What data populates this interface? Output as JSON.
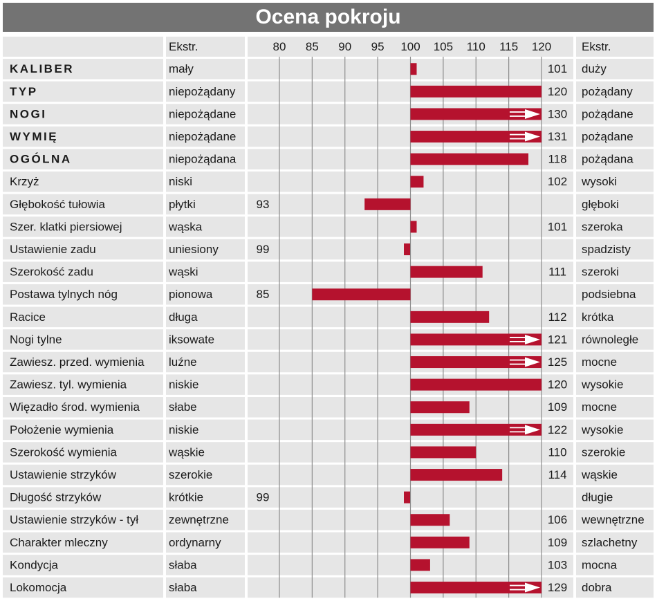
{
  "title": "Ocena pokroju",
  "header": {
    "left_extreme": "Ekstr.",
    "right_extreme": "Ekstr."
  },
  "colors": {
    "title_bg": "#737373",
    "row_bg": "#e6e6e6",
    "bar": "#b5122e",
    "gridline": "#8c8c8c"
  },
  "chart_data": {
    "type": "bar",
    "orientation": "horizontal",
    "title": "Ocena pokroju",
    "xlim": [
      80,
      120
    ],
    "ticks": [
      80,
      85,
      90,
      95,
      100,
      105,
      110,
      115,
      120
    ],
    "baseline": 100,
    "grid": true,
    "rows": [
      {
        "trait": "KALIBER",
        "bold": true,
        "low": "mały",
        "high": "duży",
        "value": 101
      },
      {
        "trait": "TYP",
        "bold": true,
        "low": "niepożądany",
        "high": "pożądany",
        "value": 120
      },
      {
        "trait": "NOGI",
        "bold": true,
        "low": "niepożądane",
        "high": "pożądane",
        "value": 130,
        "clipped": true
      },
      {
        "trait": "WYMIĘ",
        "bold": true,
        "low": "niepożądane",
        "high": "pożądane",
        "value": 131,
        "clipped": true
      },
      {
        "trait": "OGÓLNA",
        "bold": true,
        "low": "niepożądana",
        "high": "pożądana",
        "value": 118
      },
      {
        "trait": "Krzyż",
        "low": "niski",
        "high": "wysoki",
        "value": 102
      },
      {
        "trait": "Głębokość tułowia",
        "low": "płytki",
        "high": "głęboki",
        "value": 93
      },
      {
        "trait": "Szer. klatki piersiowej",
        "low": "wąska",
        "high": "szeroka",
        "value": 101
      },
      {
        "trait": "Ustawienie zadu",
        "low": "uniesiony",
        "high": "spadzisty",
        "value": 99
      },
      {
        "trait": "Szerokość zadu",
        "low": "wąski",
        "high": "szeroki",
        "value": 111
      },
      {
        "trait": "Postawa tylnych nóg",
        "low": "pionowa",
        "high": "podsiebna",
        "value": 85
      },
      {
        "trait": "Racice",
        "low": "długa",
        "high": "krótka",
        "value": 112
      },
      {
        "trait": "Nogi tylne",
        "low": "iksowate",
        "high": "równoległe",
        "value": 121,
        "clipped": true
      },
      {
        "trait": "Zawiesz. przed. wymienia",
        "low": "luźne",
        "high": "mocne",
        "value": 125,
        "clipped": true
      },
      {
        "trait": "Zawiesz. tyl. wymienia",
        "low": "niskie",
        "high": "wysokie",
        "value": 120
      },
      {
        "trait": "Więzadło środ. wymienia",
        "low": "słabe",
        "high": "mocne",
        "value": 109
      },
      {
        "trait": "Położenie wymienia",
        "low": "niskie",
        "high": "wysokie",
        "value": 122,
        "clipped": true
      },
      {
        "trait": "Szerokość wymienia",
        "low": "wąskie",
        "high": "szerokie",
        "value": 110
      },
      {
        "trait": "Ustawienie strzyków",
        "low": "szerokie",
        "high": "wąskie",
        "value": 114
      },
      {
        "trait": "Długość strzyków",
        "low": "krótkie",
        "high": "długie",
        "value": 99
      },
      {
        "trait": "Ustawienie strzyków - tył",
        "low": "zewnętrzne",
        "high": "wewnętrzne",
        "value": 106
      },
      {
        "trait": "Charakter mleczny",
        "low": "ordynarny",
        "high": "szlachetny",
        "value": 109
      },
      {
        "trait": "Kondycja",
        "low": "słaba",
        "high": "mocna",
        "value": 103
      },
      {
        "trait": "Lokomocja",
        "low": "słaba",
        "high": "dobra",
        "value": 129,
        "clipped": true
      }
    ]
  }
}
